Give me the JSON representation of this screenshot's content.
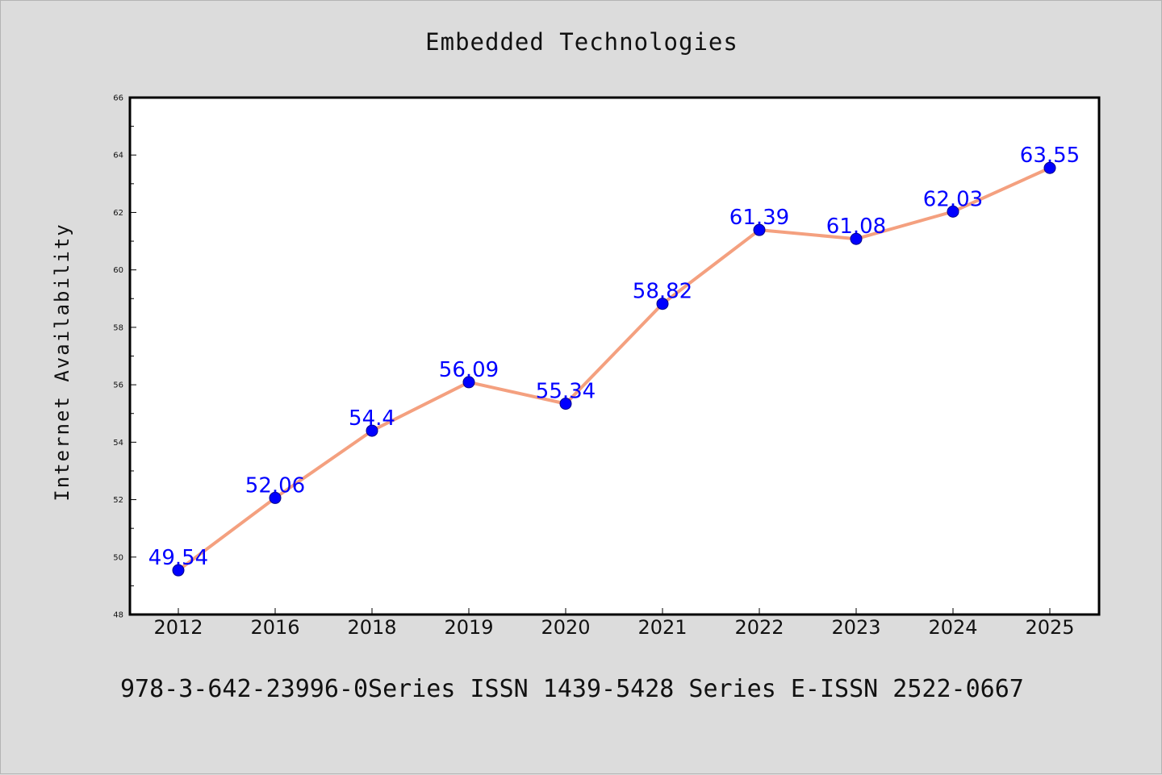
{
  "chart_data": {
    "type": "line",
    "title": "Embedded Technologies",
    "xlabel": "",
    "ylabel": "Internet Availability",
    "categories": [
      "2012",
      "2016",
      "2018",
      "2019",
      "2020",
      "2021",
      "2022",
      "2023",
      "2024",
      "2025"
    ],
    "series": [
      {
        "values": [
          49.54,
          52.06,
          54.4,
          56.09,
          55.34,
          58.82,
          61.39,
          61.08,
          62.03,
          63.55
        ],
        "labels": [
          "49.54",
          "52.06",
          "54.4",
          "56.09",
          "55.34",
          "58.82",
          "61.39",
          "61.08",
          "62.03",
          "63.55"
        ],
        "line_color": "#f4a07f",
        "marker_color": "#0000ff",
        "label_color": "#0000ff"
      }
    ],
    "ylim": [
      48,
      66
    ],
    "yticks": [
      "48",
      "50",
      "52",
      "54",
      "56",
      "58",
      "60",
      "62",
      "64",
      "66"
    ],
    "grid": false,
    "legend": "none"
  },
  "footer": {
    "text": "978-3-642-23996-0Series ISSN 1439-5428 Series E-ISSN 2522-0667"
  },
  "colors": {
    "background": "#dcdcdc",
    "plot_background": "#ffffff"
  }
}
